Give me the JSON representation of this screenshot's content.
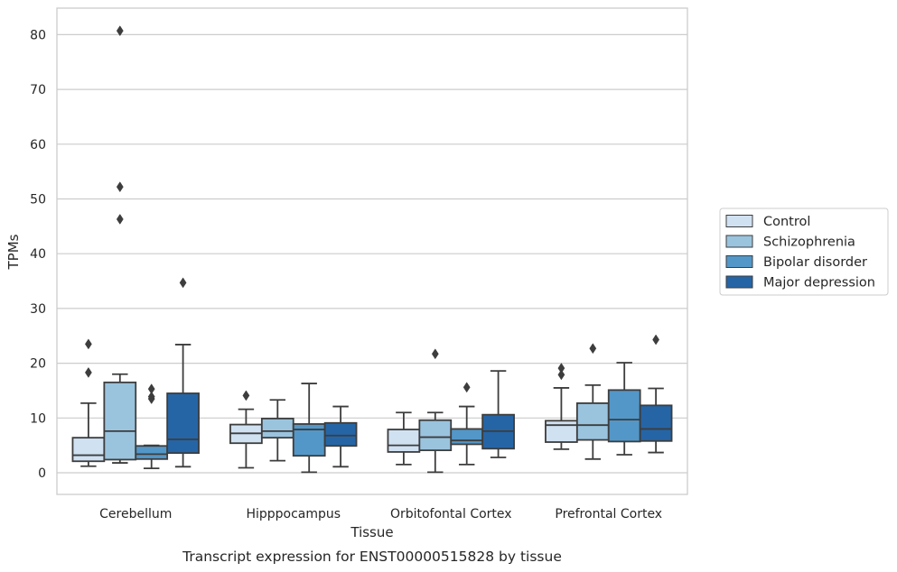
{
  "chart_data": {
    "type": "boxplot",
    "title": "",
    "caption": "Transcript expression for ENST00000515828 by tissue",
    "xlabel": "Tissue",
    "ylabel": "TPMs",
    "ylim": [
      -4,
      85
    ],
    "yticks": [
      0,
      10,
      20,
      30,
      40,
      50,
      60,
      70,
      80
    ],
    "grid": "horizontal",
    "legend_position": "right",
    "categories": [
      "Cerebellum",
      "Hipppocampus",
      "Orbitofontal Cortex",
      "Prefrontal Cortex"
    ],
    "series": [
      {
        "name": "Control",
        "color": "#d0e1f2",
        "boxes": [
          {
            "min": 1.2,
            "q1": 2.1,
            "median": 3.2,
            "q3": 6.4,
            "max": 12.7,
            "outliers": [
              18.3,
              23.5
            ]
          },
          {
            "min": 0.9,
            "q1": 5.4,
            "median": 7.2,
            "q3": 8.8,
            "max": 11.6,
            "outliers": [
              14.1
            ]
          },
          {
            "min": 1.5,
            "q1": 3.8,
            "median": 5.0,
            "q3": 7.9,
            "max": 11.0,
            "outliers": []
          },
          {
            "min": 4.3,
            "q1": 5.6,
            "median": 8.7,
            "q3": 9.5,
            "max": 15.5,
            "outliers": [
              17.9,
              19.1
            ]
          }
        ]
      },
      {
        "name": "Schizophrenia",
        "color": "#9ac4de",
        "boxes": [
          {
            "min": 1.8,
            "q1": 2.4,
            "median": 7.6,
            "q3": 16.5,
            "max": 18.0,
            "outliers": [
              46.3,
              52.2,
              80.7
            ]
          },
          {
            "min": 2.2,
            "q1": 6.4,
            "median": 7.6,
            "q3": 9.9,
            "max": 13.3,
            "outliers": []
          },
          {
            "min": 0.1,
            "q1": 4.1,
            "median": 6.5,
            "q3": 9.6,
            "max": 11.0,
            "outliers": [
              21.7
            ]
          },
          {
            "min": 2.5,
            "q1": 6.0,
            "median": 8.7,
            "q3": 12.7,
            "max": 16.0,
            "outliers": [
              22.7
            ]
          }
        ]
      },
      {
        "name": "Bipolar disorder",
        "color": "#5397c8",
        "boxes": [
          {
            "min": 0.8,
            "q1": 2.5,
            "median": 3.4,
            "q3": 4.9,
            "max": 5.0,
            "outliers": [
              13.5,
              13.9,
              15.3
            ]
          },
          {
            "min": 0.1,
            "q1": 3.1,
            "median": 7.9,
            "q3": 8.9,
            "max": 16.3,
            "outliers": []
          },
          {
            "min": 1.5,
            "q1": 5.2,
            "median": 5.9,
            "q3": 8.0,
            "max": 12.1,
            "outliers": [
              15.6
            ]
          },
          {
            "min": 3.3,
            "q1": 5.7,
            "median": 9.7,
            "q3": 15.1,
            "max": 20.1,
            "outliers": []
          }
        ]
      },
      {
        "name": "Major depression",
        "color": "#2565a6",
        "boxes": [
          {
            "min": 1.1,
            "q1": 3.6,
            "median": 6.1,
            "q3": 14.5,
            "max": 23.4,
            "outliers": [
              34.7
            ]
          },
          {
            "min": 1.1,
            "q1": 4.9,
            "median": 6.8,
            "q3": 9.1,
            "max": 12.1,
            "outliers": []
          },
          {
            "min": 2.8,
            "q1": 4.4,
            "median": 7.6,
            "q3": 10.6,
            "max": 18.6,
            "outliers": []
          },
          {
            "min": 3.7,
            "q1": 5.8,
            "median": 8.0,
            "q3": 12.3,
            "max": 15.4,
            "outliers": [
              24.3
            ]
          }
        ]
      }
    ]
  }
}
